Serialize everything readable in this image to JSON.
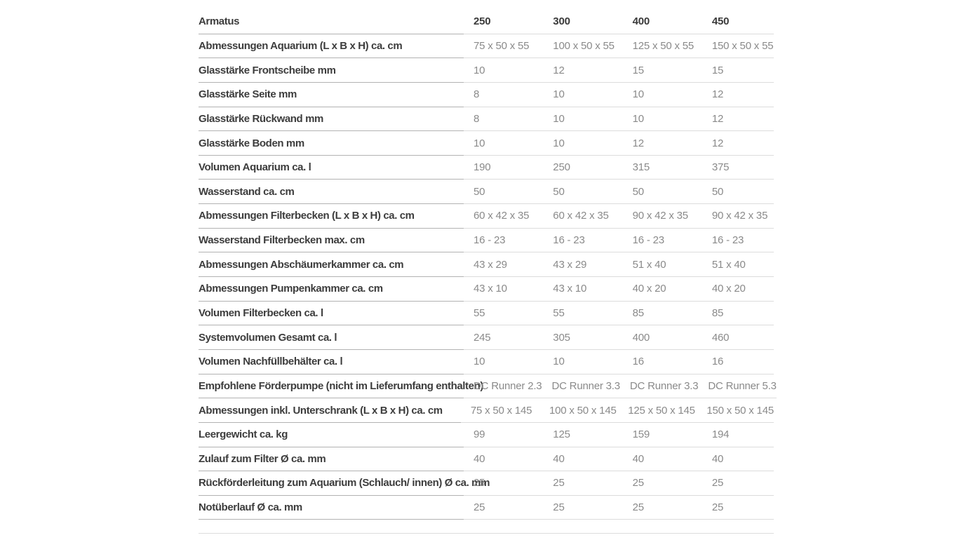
{
  "table": {
    "header": {
      "label": "Armatus",
      "columns": [
        "250",
        "300",
        "400",
        "450"
      ]
    },
    "rows": [
      {
        "label": "Abmessungen Aquarium (L x B x H) ca. cm",
        "values": [
          "75 x 50 x 55",
          "100 x 50 x 55",
          "125 x 50 x 55",
          "150 x 50 x 55"
        ]
      },
      {
        "label": "Glasstärke Frontscheibe mm",
        "values": [
          "10",
          "12",
          "15",
          "15"
        ]
      },
      {
        "label": "Glasstärke Seite mm",
        "values": [
          "8",
          "10",
          "10",
          "12"
        ]
      },
      {
        "label": "Glasstärke Rückwand mm",
        "values": [
          "8",
          "10",
          "10",
          "12"
        ]
      },
      {
        "label": "Glasstärke Boden mm",
        "values": [
          "10",
          "10",
          "12",
          "12"
        ]
      },
      {
        "label": "Volumen Aquarium ca. l",
        "values": [
          "190",
          "250",
          "315",
          "375"
        ]
      },
      {
        "label": "Wasserstand ca. cm",
        "values": [
          "50",
          "50",
          "50",
          "50"
        ]
      },
      {
        "label": "Abmessungen Filterbecken (L x B x H) ca. cm",
        "values": [
          "60 x 42 x 35",
          "60 x 42 x 35",
          "90 x 42 x 35",
          "90 x 42 x 35"
        ]
      },
      {
        "label": "Wasserstand Filterbecken max. cm",
        "values": [
          "16 - 23",
          "16 - 23",
          "16 - 23",
          "16 - 23"
        ]
      },
      {
        "label": "Abmessungen Abschäumerkammer ca. cm",
        "values": [
          "43 x 29",
          "43 x 29",
          "51 x 40",
          "51 x 40"
        ]
      },
      {
        "label": "Abmessungen Pumpenkammer ca. cm",
        "values": [
          "43 x 10",
          "43 x 10",
          "40 x 20",
          "40 x 20"
        ]
      },
      {
        "label": "Volumen Filterbecken ca. l",
        "values": [
          "55",
          "55",
          "85",
          "85"
        ]
      },
      {
        "label": "Systemvolumen Gesamt ca. l",
        "values": [
          "245",
          "305",
          "400",
          "460"
        ]
      },
      {
        "label": "Volumen Nachfüllbehälter ca. l",
        "values": [
          "10",
          "10",
          "16",
          "16"
        ]
      },
      {
        "label": "Empfohlene Förderpumpe (nicht im Lieferumfang enthalten)",
        "values": [
          "DC Runner 2.3",
          "DC Runner 3.3",
          "DC Runner 3.3",
          "DC Runner 5.3"
        ]
      },
      {
        "label": "Abmessungen inkl. Unterschrank (L x B x H) ca. cm",
        "values": [
          "75 x 50 x 145",
          "100 x 50 x 145",
          "125 x 50 x 145",
          "150 x 50 x 145"
        ]
      },
      {
        "label": "Leergewicht ca. kg",
        "values": [
          "99",
          "125",
          "159",
          "194"
        ]
      },
      {
        "label": "Zulauf zum Filter Ø ca. mm",
        "values": [
          "40",
          "40",
          "40",
          "40"
        ]
      },
      {
        "label": "Rückförderleitung zum Aquarium (Schlauch/ innen) Ø ca. mm",
        "values": [
          "25",
          "25",
          "25",
          "25"
        ]
      },
      {
        "label": "Notüberlauf Ø ca. mm",
        "values": [
          "25",
          "25",
          "25",
          "25"
        ]
      }
    ]
  },
  "colors": {
    "label_text": "#3d3d3d",
    "value_text": "#8a8a8a",
    "header_text": "#3a3a3a",
    "separator_dark": "#b2b2b2",
    "separator_light": "#dcdcdc",
    "background": "#ffffff"
  }
}
